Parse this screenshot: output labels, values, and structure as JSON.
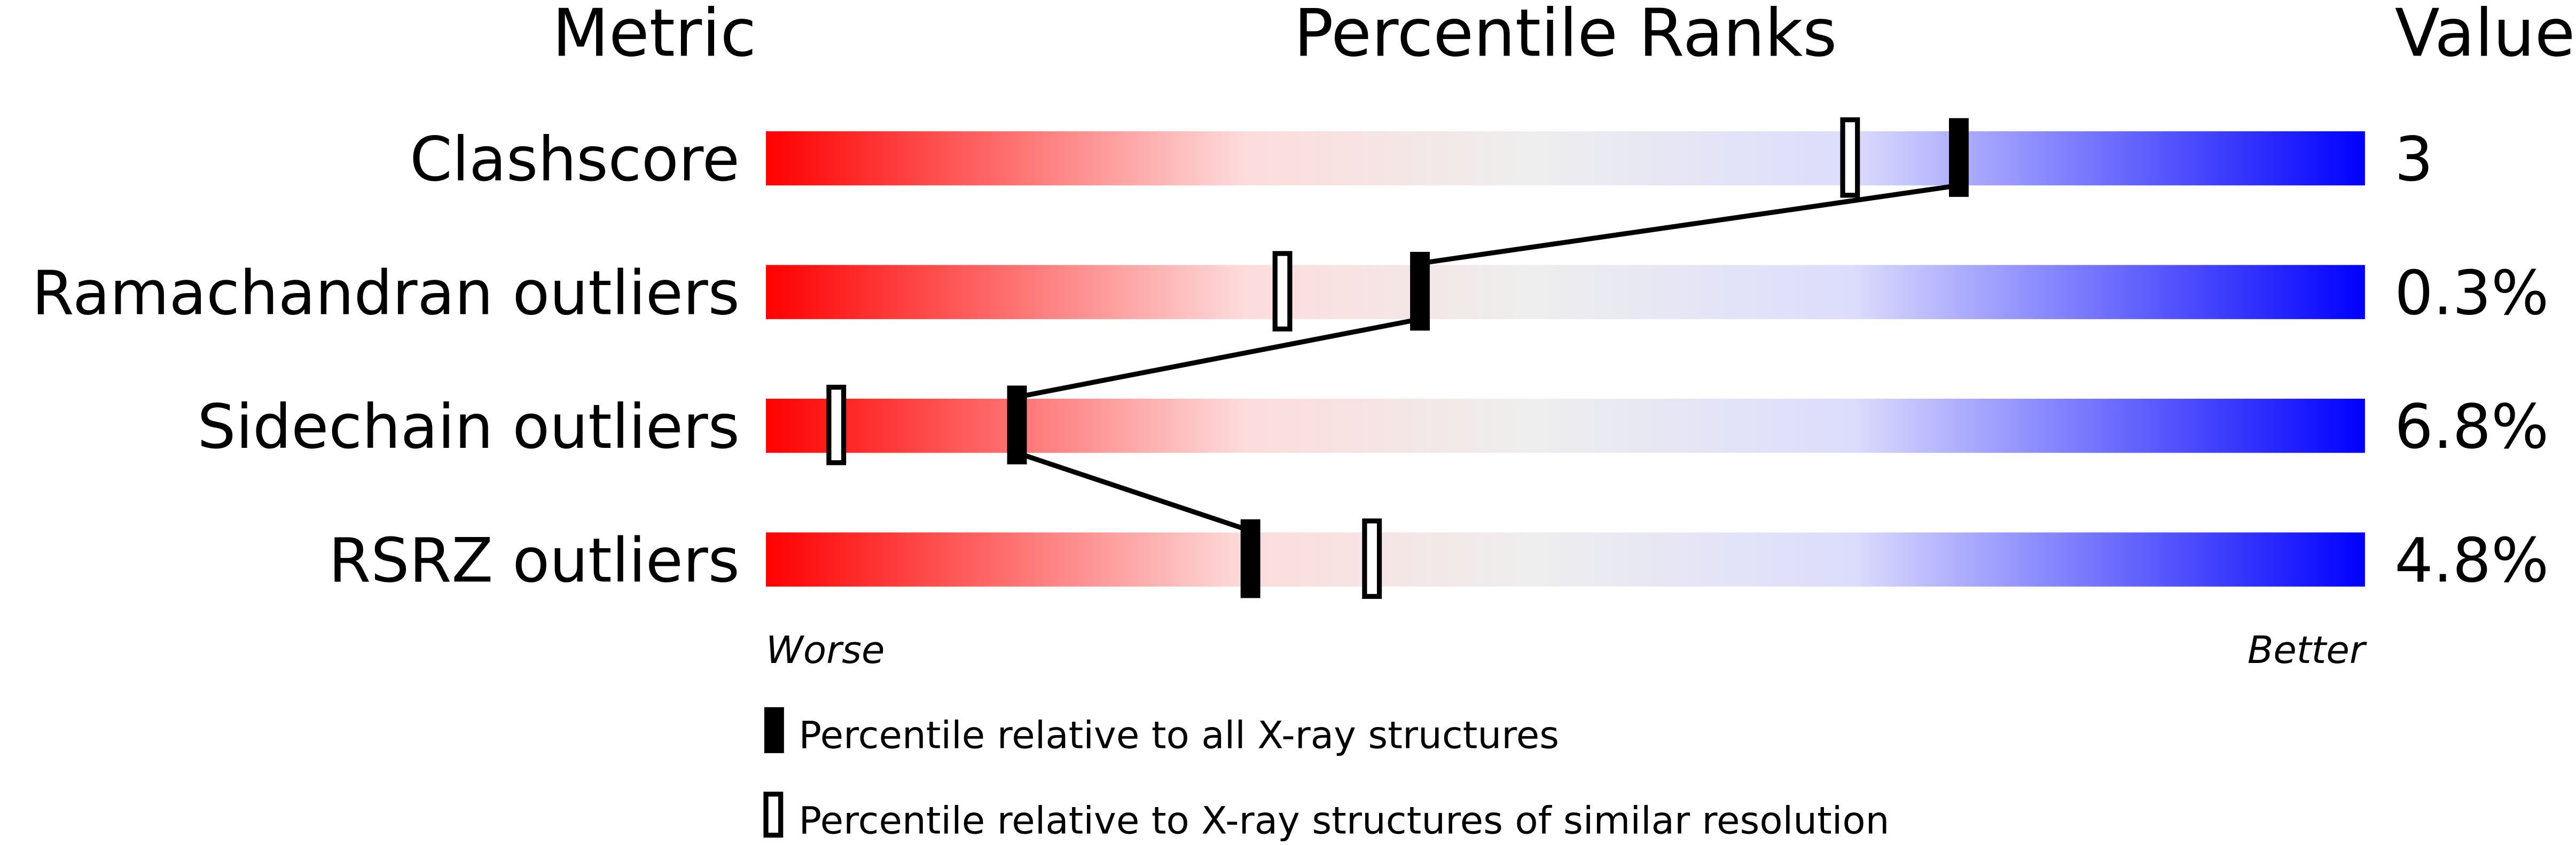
{
  "chart_data": {
    "type": "percentile-bar",
    "headers": {
      "metric": "Metric",
      "ranks": "Percentile Ranks",
      "value": "Value"
    },
    "xlim": [
      0,
      100
    ],
    "axis_labels": {
      "worse": "Worse",
      "better": "Better"
    },
    "gradient_colors": [
      "#ff0000",
      "#fddcdc",
      "#eeeeee",
      "#dcdcfd",
      "#0000ff"
    ],
    "metrics": [
      {
        "name": "Clashscore",
        "value": "3",
        "percentile_all": 74.6,
        "percentile_similar": 67.8
      },
      {
        "name": "Ramachandran outliers",
        "value": "0.3%",
        "percentile_all": 40.9,
        "percentile_similar": 32.3
      },
      {
        "name": "Sidechain outliers",
        "value": "6.8%",
        "percentile_all": 15.7,
        "percentile_similar": 4.4
      },
      {
        "name": "RSRZ outliers",
        "value": "4.8%",
        "percentile_all": 30.3,
        "percentile_similar": 37.9
      }
    ],
    "legend": {
      "all": "Percentile relative to all X-ray structures",
      "similar": "Percentile relative to X-ray structures of similar resolution"
    }
  }
}
